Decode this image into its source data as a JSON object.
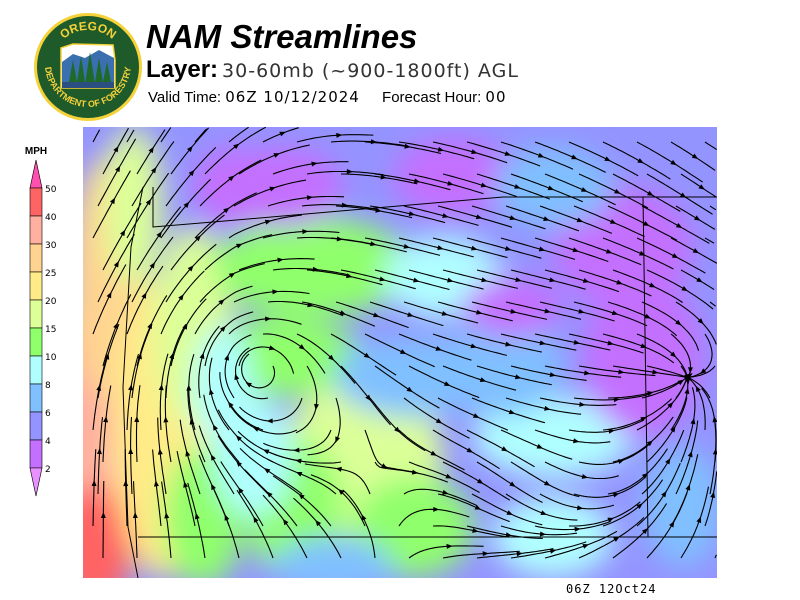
{
  "logo": {
    "text_top": "OREGON",
    "text_bottom": "DEPARTMENT OF FORESTRY",
    "colors": {
      "ring": "#1f5a2a",
      "text": "#f5d23a"
    }
  },
  "header": {
    "title": "NAM Streamlines",
    "layer_label": "Layer:",
    "layer_value": "30-60mb (~900-1800ft) AGL",
    "valid_label": "Valid Time:",
    "valid_value": "06Z 10/12/2024",
    "forecast_label": "Forecast Hour:",
    "forecast_value": "00"
  },
  "legend": {
    "unit": "MPH",
    "levels": [
      "50",
      "40",
      "30",
      "25",
      "20",
      "15",
      "10",
      "8",
      "6",
      "4",
      "2"
    ],
    "colors": {
      "above_50": "#ff50b0",
      "40-50": "#ff6464",
      "30-40": "#ffb0a0",
      "25-30": "#ffd490",
      "20-25": "#ffec88",
      "15-20": "#dcff98",
      "10-15": "#90ff6c",
      "8-10": "#b0ffff",
      "6-8": "#80c0ff",
      "4-6": "#9494ff",
      "2-4": "#c470ff",
      "below_2": "#e890ff"
    }
  },
  "map": {
    "stamp": "06Z 12Oct24",
    "line_color": "#000000"
  }
}
